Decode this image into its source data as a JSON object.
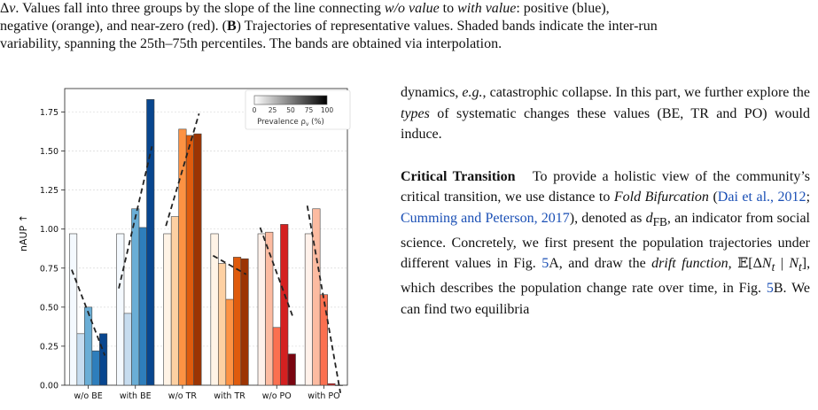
{
  "caption": {
    "line1_prefix": "Δ",
    "line1_var": "v",
    "line1_text": ". Values fall into three groups by the slope of the line connecting ",
    "line1_wo": "w/o value",
    "line1_to": " to ",
    "line1_with": "with value",
    "line1_tail": ": positive (blue),",
    "line2": "negative (orange), and near-zero (red). (",
    "line2_b": "B",
    "line2_tail": ") Trajectories of representative values. Shaded bands indicate the inter-run",
    "line3": "variability, spanning the 25th–75th percentiles. The bands are obtained via interpolation."
  },
  "chart_data": {
    "type": "bar",
    "ylabel": "nAUP ↑",
    "ylim": [
      0,
      1.9
    ],
    "yticks": [
      "0.00",
      "0.25",
      "0.50",
      "0.75",
      "1.00",
      "1.25",
      "1.50",
      "1.75"
    ],
    "categories": [
      "w/o BE",
      "with BE",
      "w/o TR",
      "with TR",
      "w/o PO",
      "with PO"
    ],
    "colorbar": {
      "label": "Prevalence ρ",
      "label_sub": "v",
      "label_unit": " (%)",
      "ticks": [
        "0",
        "25",
        "50",
        "75",
        "100"
      ]
    },
    "groups": [
      {
        "category": "w/o BE",
        "family": "blue",
        "values": [
          0.97,
          0.33,
          0.5,
          0.22,
          0.33
        ],
        "trend": [
          0.74,
          0.19
        ]
      },
      {
        "category": "with BE",
        "family": "blue",
        "values": [
          0.97,
          0.46,
          1.13,
          1.01,
          1.83
        ],
        "trend": [
          0.62,
          1.53
        ]
      },
      {
        "category": "w/o TR",
        "family": "orange",
        "values": [
          0.97,
          1.08,
          1.64,
          1.6,
          1.61
        ],
        "trend": [
          1.02,
          1.74
        ]
      },
      {
        "category": "with TR",
        "family": "orange",
        "values": [
          0.97,
          0.78,
          0.55,
          0.82,
          0.81
        ],
        "trend": [
          0.83,
          0.71
        ]
      },
      {
        "category": "w/o PO",
        "family": "red",
        "values": [
          0.97,
          0.98,
          0.37,
          1.03,
          0.2
        ],
        "trend": [
          1.01,
          0.43
        ]
      },
      {
        "category": "with PO",
        "family": "red",
        "values": [
          0.97,
          1.13,
          0.58,
          0.01,
          0.0
        ],
        "trend": [
          1.15,
          -0.05
        ]
      }
    ],
    "colors": {
      "blue": [
        "#f4f9fe",
        "#c6dcef",
        "#6aaed6",
        "#2e7ebc",
        "#08468f"
      ],
      "orange": [
        "#fff3e6",
        "#fdd0a2",
        "#fd9243",
        "#df5b0d",
        "#9c3403"
      ],
      "red": [
        "#fff1ea",
        "#fcbba1",
        "#fb7050",
        "#d42020",
        "#7a0510"
      ]
    }
  },
  "text": {
    "p1_a": "dynamics, ",
    "p1_eg": "e.g.",
    "p1_b": ", catastrophic collapse. In this part, we further explore the ",
    "p1_types": "types",
    "p1_c": " of systematic changes these values (BE, TR and PO) would induce.",
    "p2_head": "Critical Transition",
    "p2_a": "   To provide a holistic view of the community’s critical transition, we use distance to ",
    "p2_fold": "Fold Bifurcation",
    "p2_b": " (",
    "p2_cite1": "Dai et al., 2012",
    "p2_c": "; ",
    "p2_cite2": "Cumming and Peterson, 2017",
    "p2_d": "), denoted as ",
    "p2_dfb": "d",
    "p2_dfb_sub": "FB",
    "p2_e": ", an indicator from social science. Concretely, we first present the population trajectories under different values in Fig. ",
    "p2_fig1": "5",
    "p2_f": "A, and draw the ",
    "p2_drift": "drift function",
    "p2_g": ", 𝔼[Δ",
    "p2_N1": "N",
    "p2_t1": "t",
    "p2_h": " | ",
    "p2_N2": "N",
    "p2_t2": "t",
    "p2_i": "], which describes the population change rate over time, in Fig. ",
    "p2_fig2": "5",
    "p2_j": "B. We can find two equilibria"
  }
}
